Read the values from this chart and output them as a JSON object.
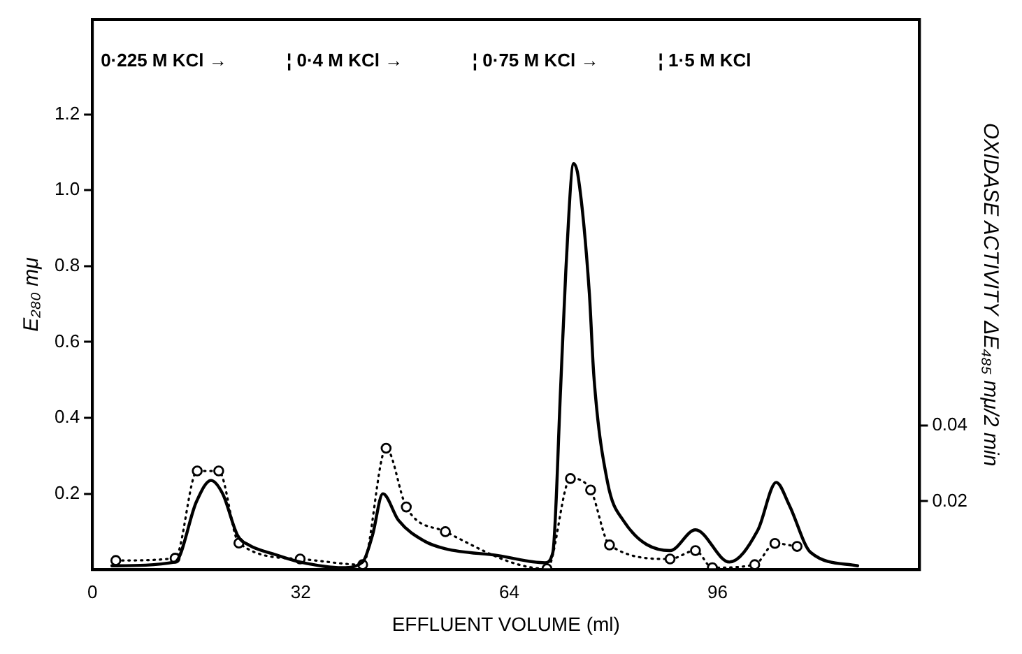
{
  "chart_data": {
    "type": "line",
    "xlabel": "EFFLUENT VOLUME (ml)",
    "ylabel": "E₂₈₀ mμ",
    "y2label": "OXIDASE ACTIVITY ΔE₄₈₅ mμ/2 min",
    "annotations": [
      "0·225 M KCl →",
      "¦ 0·4 M KCl →",
      "¦ 0·75 M KCl →",
      "¦ 1·5 M KCl"
    ],
    "xlim": [
      0,
      127
    ],
    "xticks": [
      0,
      32,
      64,
      96
    ],
    "ylim": [
      0,
      1.45
    ],
    "yticks": [
      0.2,
      0.4,
      0.6,
      0.8,
      {
        "value": 1,
        "label": "1.0"
      },
      1.2
    ],
    "y2lim": [
      0.002,
      0.147
    ],
    "y2ticks": [
      0.02,
      0.04
    ],
    "grid": false,
    "legend": false,
    "series": [
      {
        "type": "line",
        "color": "#000000",
        "marker": "none",
        "line_style": "solid",
        "x": [
          3,
          12.7,
          16,
          18.2,
          20,
          22.3,
          24,
          28,
          31.9,
          38.4,
          41.5,
          43,
          44.6,
          47,
          51,
          54.2,
          62.3,
          69.5,
          70.7,
          71.9,
          72.7,
          73.9,
          74.6,
          76.3,
          77,
          79.1,
          81.5,
          88.7,
          92.6,
          97.8,
          102.2,
          105,
          107,
          110.3,
          117.5
        ],
        "values": [
          0.01,
          0.02,
          0.18,
          0.235,
          0.2,
          0.09,
          0.065,
          0.04,
          0.02,
          0.005,
          0.02,
          0.09,
          0.2,
          0.13,
          0.075,
          0.055,
          0.037,
          0.018,
          0.045,
          0.48,
          0.79,
          1.07,
          1.035,
          0.73,
          0.51,
          0.23,
          0.13,
          0.05,
          0.105,
          0.02,
          0.105,
          0.23,
          0.17,
          0.045,
          0.01
        ]
      },
      {
        "type": "line",
        "axis": "y2",
        "color": "#000000",
        "marker": "circle",
        "line_style": "dotted",
        "x": [
          3.6,
          12.7,
          16.1,
          19.4,
          22.5,
          31.9,
          41.5,
          45.1,
          48.2,
          54.2,
          69.8,
          73.4,
          76.5,
          79.4,
          88.7,
          92.6,
          95.2,
          101.7,
          104.8,
          108.2
        ],
        "values": [
          0.0044,
          0.005,
          0.028,
          0.028,
          0.009,
          0.0048,
          0.0033,
          0.034,
          0.0185,
          0.012,
          0.0022,
          0.026,
          0.023,
          0.0085,
          0.0048,
          0.007,
          0.0025,
          0.0033,
          0.0089,
          0.0081
        ]
      }
    ]
  }
}
